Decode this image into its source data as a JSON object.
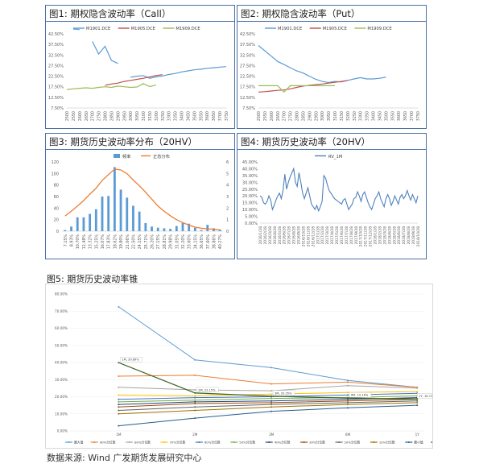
{
  "figures": {
    "fig1": {
      "title": "图1: 期权隐含波动率（Call）"
    },
    "fig2": {
      "title": "图2: 期权隐含波动率（Put）"
    },
    "fig3": {
      "title": "图3: 期货历史波动率分布（20HV）"
    },
    "fig4": {
      "title": "图4: 期货历史波动率（20HV）"
    },
    "fig5": {
      "title": "图5: 期货历史波动率锥"
    }
  },
  "source": "数据来源: Wind 广发期货发展研究中心",
  "chart_data": [
    {
      "id": "fig1",
      "type": "line",
      "title": "图1: 期权隐含波动率（Call）",
      "x": [
        2500,
        2550,
        2600,
        2650,
        2700,
        2750,
        2800,
        2850,
        2900,
        2950,
        3000,
        3050,
        3100,
        3150,
        3200,
        3250,
        3300,
        3350,
        3400,
        3450,
        3500,
        3550,
        3600,
        3650,
        3700,
        3750
      ],
      "x_tick_labels": [
        "2500",
        "2550",
        "2600",
        "2650",
        "2700",
        "2750",
        "2800",
        "2850",
        "2900",
        "2950",
        "3000",
        "3050",
        "3100",
        "3150",
        "3200",
        "3250",
        "3300",
        "3350",
        "3400",
        "3450",
        "3500",
        "3550",
        "3600",
        "3650",
        "3700",
        "3750"
      ],
      "ylim": [
        0.075,
        0.425
      ],
      "y_ticks": [
        "7.50%",
        "12.50%",
        "17.50%",
        "22.50%",
        "27.50%",
        "32.50%",
        "37.50%",
        "42.50%"
      ],
      "legend": "top",
      "series": [
        {
          "name": "M1901.DCE",
          "color": "#5b9bd5",
          "values": [
            null,
            0.448,
            0.445,
            null,
            0.389,
            0.33,
            0.366,
            0.3,
            0.285,
            null,
            0.22,
            0.225,
            0.228,
            0.215,
            0.222,
            0.226,
            0.233,
            0.238,
            0.245,
            0.25,
            0.255,
            0.258,
            0.262,
            0.265,
            0.268,
            0.27
          ]
        },
        {
          "name": "M1905.DCE",
          "color": "#c0504d",
          "values": [
            null,
            null,
            null,
            null,
            null,
            null,
            0.182,
            0.188,
            0.192,
            0.2,
            0.205,
            0.21,
            0.215,
            0.222,
            0.228,
            0.232,
            null,
            null,
            null,
            null,
            null,
            null,
            null,
            null,
            null,
            null
          ]
        },
        {
          "name": "M1909.DCE",
          "color": "#9bbb59",
          "values": [
            0.162,
            0.165,
            0.168,
            0.17,
            0.168,
            0.172,
            0.175,
            0.172,
            0.178,
            0.175,
            0.172,
            0.174,
            0.19,
            0.176,
            0.183,
            null,
            null,
            null,
            null,
            null,
            null,
            null,
            null,
            null,
            null,
            null
          ]
        }
      ]
    },
    {
      "id": "fig2",
      "type": "line",
      "title": "图2: 期权隐含波动率（Put）",
      "x": [
        2500,
        2550,
        2600,
        2650,
        2700,
        2750,
        2800,
        2850,
        2900,
        2950,
        3000,
        3050,
        3100,
        3150,
        3200,
        3250,
        3300,
        3350,
        3400,
        3450,
        3500,
        3550,
        3600,
        3650,
        3700,
        3750
      ],
      "x_tick_labels": [
        "2500",
        "2550",
        "2600",
        "2650",
        "2700",
        "2750",
        "2800",
        "2850",
        "2900",
        "2950",
        "3000",
        "3050",
        "3100",
        "3150",
        "3200",
        "3250",
        "3300",
        "3350",
        "3400",
        "3450",
        "3500",
        "3550",
        "3600",
        "3650",
        "3700",
        "3750"
      ],
      "ylim": [
        0.075,
        0.425
      ],
      "y_ticks": [
        "7.50%",
        "12.50%",
        "17.50%",
        "22.50%",
        "27.50%",
        "32.50%",
        "37.50%",
        "42.50%"
      ],
      "legend": "top",
      "series": [
        {
          "name": "M1901.DCE",
          "color": "#5b9bd5",
          "values": [
            0.37,
            0.345,
            0.32,
            0.295,
            0.28,
            0.265,
            0.25,
            0.24,
            0.225,
            0.21,
            0.2,
            0.195,
            0.2,
            0.198,
            0.205,
            0.212,
            0.218,
            0.212,
            0.212,
            0.215,
            0.22,
            null,
            null,
            null,
            null,
            null
          ]
        },
        {
          "name": "M1905.DCE",
          "color": "#c0504d",
          "values": [
            0.15,
            0.152,
            0.155,
            0.158,
            0.16,
            0.165,
            0.172,
            0.178,
            0.182,
            0.185,
            0.188,
            0.192,
            0.196,
            0.2,
            0.205,
            null,
            null,
            null,
            null,
            null,
            null,
            null,
            null,
            null,
            null,
            null
          ]
        },
        {
          "name": "M1909.DCE",
          "color": "#9bbb59",
          "values": [
            0.18,
            0.18,
            0.18,
            0.18,
            0.15,
            0.18,
            0.18,
            0.18,
            0.18,
            0.18,
            0.18,
            0.18,
            0.18,
            null,
            null,
            null,
            null,
            null,
            null,
            null,
            null,
            null,
            null,
            null,
            null,
            null
          ]
        }
      ]
    },
    {
      "id": "fig3",
      "type": "bar",
      "title": "图3: 期货历史波动率分布（20HV）",
      "categories": [
        "7.15%",
        "8.93%",
        "10.70%",
        "12.48%",
        "13.32%",
        "15.25%",
        "16.07%",
        "17.83%",
        "18.62%",
        "19.80%",
        "21.06%",
        "22.50%",
        "24.15%",
        "25.71%",
        "26.20%",
        "27.15%",
        "28.81%",
        "29.98%",
        "31.05%",
        "32.20%",
        "33.60%",
        "34.15%",
        "36.65%",
        "37.60%",
        "38.86%",
        "40.27%"
      ],
      "x_tick_labels": [
        "7.15%",
        "8.93%",
        "10.70%",
        "12.48%",
        "13.32%",
        "15.25%",
        "16.07%",
        "17.83%",
        "18.62%",
        "19.80%",
        "21.06%",
        "22.50%",
        "24.15%",
        "25.71%",
        "26.20%",
        "27.15%",
        "28.81%",
        "29.98%",
        "31.05%",
        "32.20%",
        "33.60%",
        "34.15%",
        "36.65%",
        "37.60%",
        "38.86%",
        "40.27%"
      ],
      "ylim": [
        0,
        120
      ],
      "y2lim": [
        0,
        6
      ],
      "y_ticks": [
        "0",
        "20",
        "40",
        "60",
        "80",
        "100",
        "120"
      ],
      "y2_ticks": [
        "0",
        "1",
        "2",
        "3",
        "4",
        "5",
        "6"
      ],
      "legend": "top",
      "series": [
        {
          "name": "频率",
          "color": "#5b9bd5",
          "values": [
            2,
            8,
            24,
            24,
            30,
            38,
            60,
            61,
            111,
            72,
            58,
            44,
            34,
            14,
            8,
            6,
            5,
            4,
            9,
            14,
            13,
            6,
            2,
            11,
            5,
            3
          ]
        },
        {
          "name": "正态分布",
          "color": "#ed7d31",
          "axis": "y2",
          "values": [
            1.32,
            1.72,
            2.18,
            2.65,
            3.2,
            3.72,
            4.4,
            4.9,
            5.38,
            5.3,
            4.98,
            4.43,
            3.93,
            3.38,
            2.78,
            2.18,
            1.72,
            1.33,
            1.0,
            0.75,
            0.52,
            0.35,
            0.25,
            0.2,
            0.18,
            0.1
          ]
        }
      ]
    },
    {
      "id": "fig4",
      "type": "line",
      "title": "图4: 期货历史波动率（20HV）",
      "x_tick_labels": [
        "2016/1/28",
        "2016/2/28",
        "2016/3/28",
        "2016/4/28",
        "2016/5/28",
        "2016/6/28",
        "2016/7/28",
        "2016/8/28",
        "2016/9/28",
        "2016/10/28",
        "2016/11/28",
        "2016/12/28",
        "2017/1/28",
        "2017/2/28",
        "2017/3/28",
        "2017/4/28",
        "2017/5/28",
        "2017/6/28",
        "2017/7/28",
        "2017/8/28",
        "2017/9/28",
        "2017/10/28",
        "2017/11/28",
        "2017/12/28",
        "2018/1/28",
        "2018/2/28",
        "2018/3/28",
        "2018/4/28",
        "2018/5/28",
        "2018/6/28",
        "2018/7/28",
        "2018/8/28",
        "2018/9/28",
        "2018/10/28"
      ],
      "ylim": [
        0,
        0.45
      ],
      "y_ticks": [
        "0.00%",
        "5.00%",
        "10.00%",
        "15.00%",
        "20.00%",
        "25.00%",
        "30.00%",
        "35.00%",
        "40.00%",
        "45.00%"
      ],
      "legend": "top",
      "series": [
        {
          "name": "RV_1M",
          "color": "#4f81bd",
          "values": [
            0.2,
            0.19,
            0.15,
            0.14,
            0.16,
            0.2,
            0.17,
            0.1,
            0.13,
            0.17,
            0.2,
            0.22,
            0.18,
            0.24,
            0.36,
            0.25,
            0.3,
            0.34,
            0.37,
            0.4,
            0.3,
            0.27,
            0.37,
            0.3,
            0.22,
            0.18,
            0.22,
            0.26,
            0.2,
            0.14,
            0.12,
            0.1,
            0.13,
            0.09,
            0.12,
            0.16,
            0.35,
            0.33,
            0.28,
            0.24,
            0.22,
            0.2,
            0.18,
            0.17,
            0.16,
            0.15,
            0.14,
            0.17,
            0.18,
            0.14,
            0.1,
            0.12,
            0.14,
            0.18,
            0.19,
            0.23,
            0.2,
            0.16,
            0.21,
            0.23,
            0.19,
            0.15,
            0.12,
            0.1,
            0.14,
            0.18,
            0.2,
            0.23,
            0.18,
            0.15,
            0.12,
            0.18,
            0.21,
            0.18,
            0.13,
            0.16,
            0.2,
            0.17,
            0.14,
            0.19,
            0.21,
            0.18,
            0.2,
            0.24,
            0.2,
            0.17,
            0.21,
            0.18,
            0.15,
            0.2
          ]
        }
      ]
    },
    {
      "id": "fig5",
      "type": "line",
      "title": "图5: 期货历史波动率锥",
      "categories": [
        "1M",
        "2M",
        "3M",
        "6M",
        "1Y"
      ],
      "ylim": [
        0,
        0.8
      ],
      "y_ticks": [
        "0.00%",
        "10.00%",
        "20.00%",
        "30.00%",
        "40.00%",
        "50.00%",
        "60.00%",
        "70.00%",
        "80.00%"
      ],
      "legend": "bottom",
      "series": [
        {
          "name": "最大值",
          "color": "#5b9bd5",
          "values": [
            0.725,
            0.415,
            0.37,
            0.295,
            0.255
          ]
        },
        {
          "name": "90%分位数",
          "color": "#ed7d31",
          "values": [
            0.32,
            0.325,
            0.275,
            0.285,
            0.255
          ]
        },
        {
          "name": "80%分位数",
          "color": "#a5a5a5",
          "values": [
            0.255,
            0.24,
            0.235,
            0.265,
            0.25
          ]
        },
        {
          "name": "70%分位数",
          "color": "#ffc000",
          "values": [
            0.21,
            0.205,
            0.215,
            0.225,
            0.23
          ]
        },
        {
          "name": "60%分位数",
          "color": "#4472c4",
          "values": [
            0.185,
            0.195,
            0.2,
            0.21,
            0.22
          ]
        },
        {
          "name": "50%分位数",
          "color": "#70ad47",
          "values": [
            0.17,
            0.18,
            0.19,
            0.195,
            0.205
          ]
        },
        {
          "name": "40%分位数",
          "color": "#264478",
          "values": [
            0.155,
            0.17,
            0.175,
            0.185,
            0.195
          ]
        },
        {
          "name": "30%分位数",
          "color": "#9e480e",
          "values": [
            0.14,
            0.16,
            0.165,
            0.175,
            0.185
          ]
        },
        {
          "name": "20%分位数",
          "color": "#636363",
          "values": [
            0.12,
            0.14,
            0.155,
            0.165,
            0.175
          ]
        },
        {
          "name": "10%分位数",
          "color": "#997300",
          "values": [
            0.1,
            0.12,
            0.14,
            0.155,
            0.165
          ]
        },
        {
          "name": "最小值",
          "color": "#255e91",
          "values": [
            0.03,
            0.075,
            0.115,
            0.135,
            0.15
          ]
        },
        {
          "name": "当前值",
          "color": "#43682b",
          "values": [
            0.399,
            0.222,
            0.203,
            0.192,
            0.187
          ]
        }
      ],
      "annotations": [
        {
          "text": "1M, 39.89%",
          "x": "1M",
          "y": 0.399
        },
        {
          "text": "2M, 22.15%",
          "x": "2M",
          "y": 0.222
        },
        {
          "text": "3M, 20.35%",
          "x": "3M",
          "y": 0.203
        },
        {
          "text": "6M, 19.16%",
          "x": "6M",
          "y": 0.192
        },
        {
          "text": "1Y, 18.72%",
          "x": "1Y",
          "y": 0.187
        }
      ]
    }
  ]
}
